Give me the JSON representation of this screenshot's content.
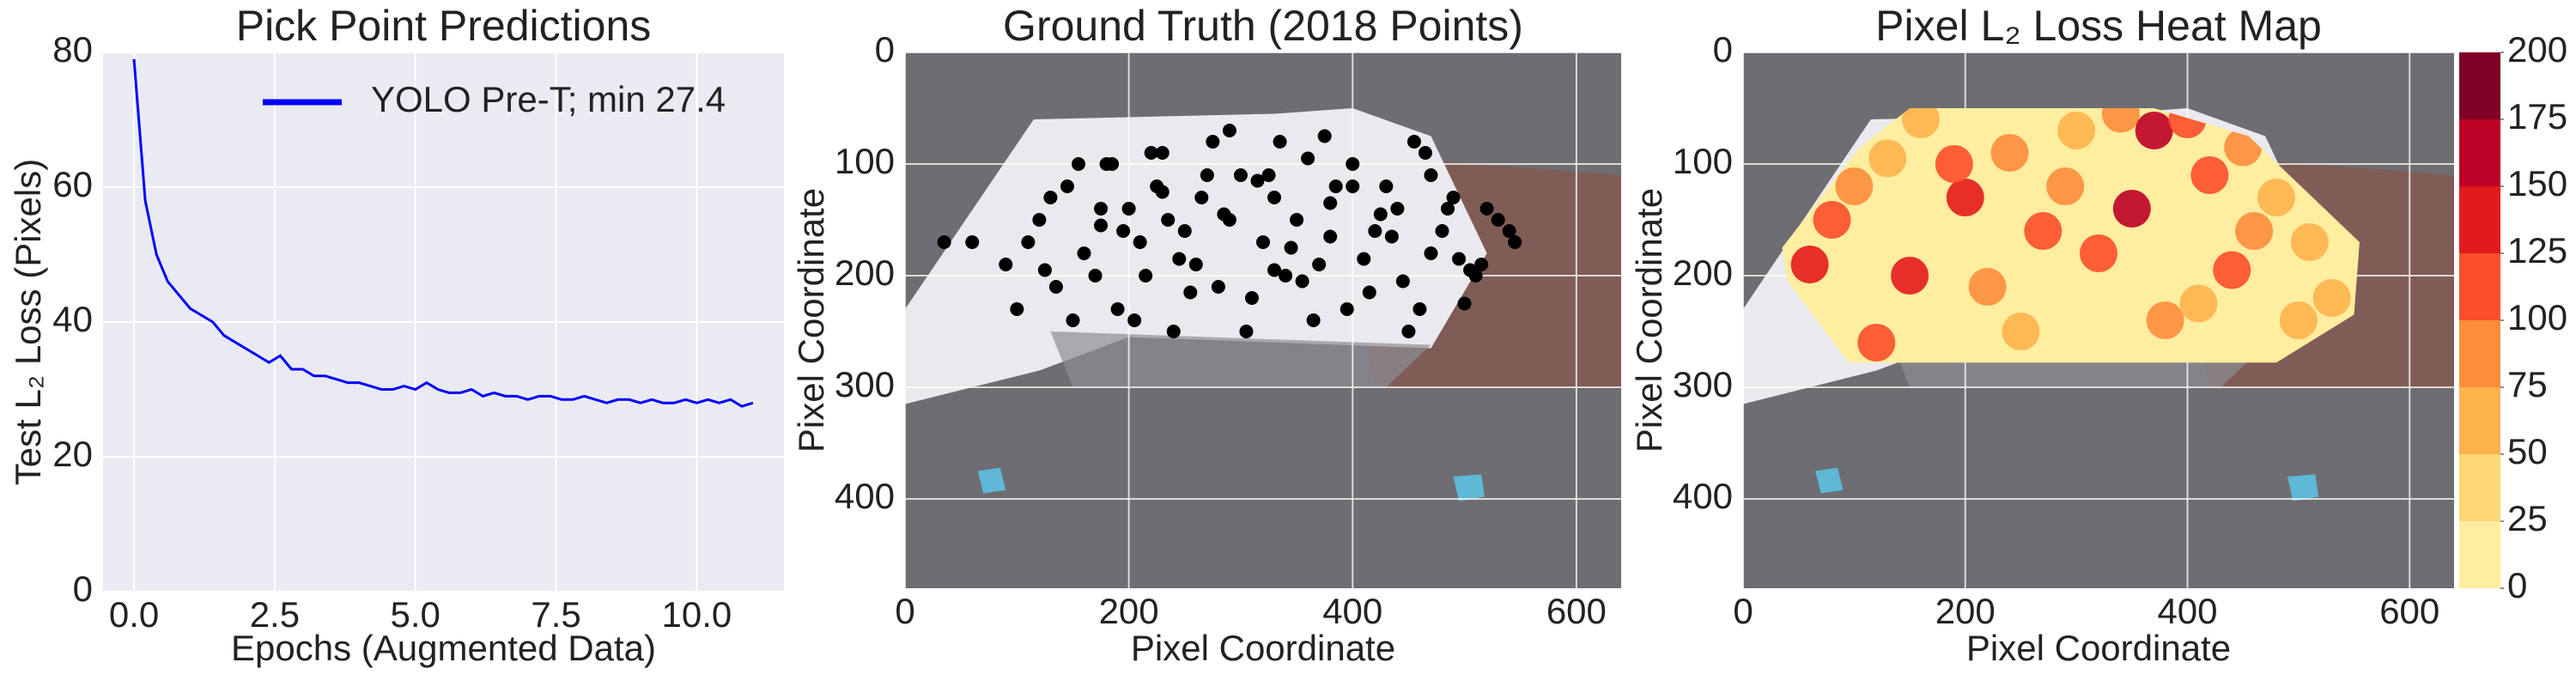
{
  "chart_data": [
    {
      "type": "line",
      "title": "Pick Point Predictions",
      "xlabel": "Epochs (Augmented Data)",
      "ylabel": "Test L₂ Loss (Pixels)",
      "x": [
        0,
        0.2,
        0.4,
        0.6,
        0.8,
        1.0,
        1.2,
        1.4,
        1.6,
        1.8,
        2.0,
        2.2,
        2.4,
        2.6,
        2.8,
        3.0,
        3.2,
        3.4,
        3.6,
        3.8,
        4.0,
        4.2,
        4.4,
        4.6,
        4.8,
        5.0,
        5.2,
        5.4,
        5.6,
        5.8,
        6.0,
        6.2,
        6.4,
        6.6,
        6.8,
        7.0,
        7.2,
        7.4,
        7.6,
        7.8,
        8.0,
        8.2,
        8.4,
        8.6,
        8.8,
        9.0,
        9.2,
        9.4,
        9.6,
        9.8,
        10.0,
        10.2,
        10.4,
        10.6,
        10.8,
        11.0
      ],
      "series": [
        {
          "name": "YOLO Pre-T; min 27.4",
          "color": "#0000ff",
          "values": [
            79,
            58,
            50,
            46,
            44,
            42,
            41,
            40,
            38,
            37,
            36,
            35,
            34,
            35,
            33,
            33,
            32,
            32,
            31.5,
            31,
            31,
            30.5,
            30,
            30,
            30.5,
            30,
            31,
            30,
            29.5,
            29.5,
            30,
            29,
            29.5,
            29,
            29,
            28.5,
            29,
            29,
            28.5,
            28.5,
            29,
            28.5,
            28,
            28.5,
            28.5,
            28,
            28.5,
            28,
            28,
            28.5,
            28,
            28.5,
            28,
            28.5,
            27.5,
            28
          ]
        }
      ],
      "xlim": [
        -0.55,
        11.55
      ],
      "ylim": [
        0,
        80
      ],
      "xticks": [
        {
          "value": 0,
          "label": "0.0"
        },
        {
          "value": 2.5,
          "label": "2.5"
        },
        {
          "value": 5,
          "label": "5.0"
        },
        {
          "value": 7.5,
          "label": "7.5"
        },
        {
          "value": 10,
          "label": "10.0"
        }
      ],
      "yticks": [
        0,
        20,
        40,
        60,
        80
      ],
      "grid": true,
      "legend": "upper right"
    },
    {
      "type": "scatter",
      "title": "Ground Truth (2018 Points)",
      "xlabel": "Pixel Coordinate",
      "ylabel": "Pixel Coordinate",
      "color": "#000000",
      "x": [
        120,
        145,
        160,
        180,
        200,
        215,
        230,
        250,
        265,
        280,
        300,
        320,
        335,
        350,
        370,
        385,
        400,
        420,
        440,
        455,
        470,
        490,
        510,
        530,
        545,
        135,
        155,
        175,
        190,
        210,
        225,
        240,
        260,
        275,
        290,
        310,
        325,
        345,
        360,
        380,
        395,
        410,
        430,
        445,
        465,
        480,
        500,
        520,
        110,
        130,
        170,
        205,
        235,
        270,
        305,
        340,
        375,
        415,
        450,
        485,
        515,
        540,
        90,
        60,
        35,
        100,
        150,
        185,
        220,
        255,
        290,
        330,
        365,
        400,
        435,
        470,
        505,
        125,
        195,
        245,
        315,
        355,
        425,
        460,
        495,
        285,
        230,
        175,
        380,
        330
      ],
      "values": [
        150,
        120,
        180,
        100,
        140,
        200,
        90,
        160,
        130,
        210,
        110,
        170,
        80,
        150,
        190,
        120,
        100,
        160,
        140,
        80,
        180,
        130,
        200,
        150,
        170,
        210,
        100,
        140,
        230,
        170,
        120,
        250,
        190,
        80,
        150,
        220,
        110,
        175,
        95,
        135,
        230,
        185,
        120,
        205,
        90,
        160,
        225,
        140,
        170,
        130,
        200,
        240,
        150,
        110,
        250,
        200,
        75,
        215,
        250,
        140,
        190,
        160,
        190,
        170,
        170,
        230,
        240,
        100,
        90,
        215,
        70,
        130,
        240,
        120,
        165,
        110,
        195,
        195,
        160,
        185,
        115,
        205,
        145,
        230,
        185,
        145,
        125,
        155,
        165,
        195
      ],
      "xlim": [
        0,
        640
      ],
      "ylim": [
        480,
        0
      ],
      "xticks": [
        0,
        200,
        400,
        600
      ],
      "yticks": [
        0,
        100,
        200,
        300,
        400
      ],
      "grid": true
    },
    {
      "type": "contour",
      "title": "Pixel L₂ Loss Heat Map",
      "xlabel": "Pixel Coordinate",
      "ylabel": "Pixel Coordinate",
      "region": [
        [
          35,
          175
        ],
        [
          105,
          85
        ],
        [
          150,
          50
        ],
        [
          370,
          50
        ],
        [
          455,
          75
        ],
        [
          555,
          170
        ],
        [
          550,
          235
        ],
        [
          480,
          278
        ],
        [
          95,
          278
        ],
        [
          40,
          205
        ]
      ],
      "x": [
        60,
        80,
        100,
        130,
        160,
        200,
        240,
        270,
        300,
        340,
        370,
        400,
        420,
        450,
        480,
        510,
        530,
        150,
        220,
        320,
        380,
        440,
        500,
        120,
        250,
        350,
        460,
        190,
        290,
        410
      ],
      "y": [
        190,
        150,
        120,
        95,
        60,
        130,
        90,
        160,
        70,
        55,
        70,
        60,
        110,
        85,
        130,
        170,
        220,
        200,
        210,
        180,
        240,
        195,
        240,
        260,
        250,
        140,
        160,
        100,
        120,
        225
      ],
      "values": [
        140,
        110,
        90,
        60,
        70,
        130,
        80,
        110,
        60,
        90,
        150,
        120,
        100,
        80,
        70,
        60,
        50,
        140,
        90,
        110,
        80,
        100,
        60,
        120,
        70,
        160,
        90,
        110,
        80,
        70
      ],
      "levels": [
        0,
        25,
        50,
        75,
        100,
        125,
        150,
        175,
        200
      ],
      "colors": [
        "#ffeda0",
        "#fed976",
        "#feb24c",
        "#fd8d3c",
        "#fc4e2a",
        "#e31a1c",
        "#bd0026",
        "#800026"
      ],
      "xlim": [
        0,
        640
      ],
      "ylim": [
        480,
        0
      ],
      "xticks": [
        0,
        200,
        400,
        600
      ],
      "yticks": [
        0,
        100,
        200,
        300,
        400
      ],
      "cticks": [
        0,
        25,
        50,
        75,
        100,
        125,
        150,
        175,
        200
      ],
      "grid": true
    }
  ]
}
